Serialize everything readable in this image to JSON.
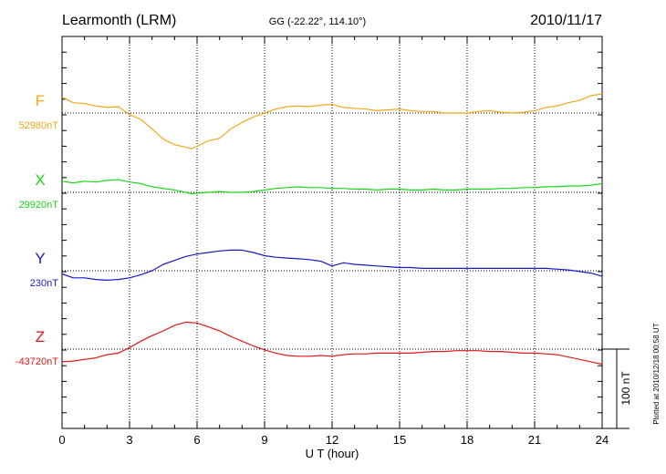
{
  "header": {
    "station": "Learmonth (LRM)",
    "coords": "GG (-22.22°, 114.10°)",
    "date": "2010/11/17"
  },
  "footer": {
    "plotted": "Plotted at 2010/12/18 00:58 UT"
  },
  "colors": {
    "F": "#f0a818",
    "X": "#18d818",
    "Y": "#1818c8",
    "Z": "#e01818"
  },
  "chart_data": {
    "type": "line",
    "xlabel": "U T (hour)",
    "xlim": [
      0,
      24
    ],
    "xticks": [
      "0",
      "3",
      "6",
      "9",
      "12",
      "15",
      "18",
      "21",
      "24"
    ],
    "scale_bar": {
      "label": "100 nT",
      "value_nT": 100
    },
    "series": [
      {
        "name": "F",
        "baseline_label": "52980nT",
        "baseline_nT": 52980,
        "x": [
          0,
          0.5,
          1,
          1.5,
          2,
          2.5,
          3,
          3.5,
          4,
          4.5,
          5,
          5.5,
          5.75,
          6,
          6.5,
          7,
          7.5,
          8,
          8.5,
          9,
          9.5,
          10,
          10.5,
          11,
          11.5,
          12,
          12.5,
          13,
          13.5,
          14,
          14.5,
          15,
          15.5,
          16,
          16.5,
          17,
          17.5,
          18,
          18.5,
          19,
          19.5,
          20,
          20.5,
          21,
          21.5,
          22,
          22.5,
          23,
          23.5,
          24
        ],
        "y": [
          53000,
          52993,
          52992,
          52989,
          52987,
          52988,
          52978,
          52972,
          52960,
          52947,
          52940,
          52937,
          52935,
          52938,
          52945,
          52948,
          52960,
          52968,
          52975,
          52980,
          52985,
          52988,
          52989,
          52988,
          52990,
          52991,
          52987,
          52986,
          52985,
          52983,
          52984,
          52985,
          52983,
          52982,
          52982,
          52980,
          52980,
          52980,
          52982,
          52983,
          52981,
          52980,
          52981,
          52983,
          52987,
          52989,
          52993,
          52996,
          53002,
          53004
        ]
      },
      {
        "name": "X",
        "baseline_label": "29920nT",
        "baseline_nT": 29920,
        "x": [
          0,
          0.5,
          1,
          1.5,
          2,
          2.5,
          3,
          3.5,
          4,
          4.5,
          5,
          5.5,
          5.75,
          6,
          6.5,
          7,
          7.5,
          8,
          8.5,
          9,
          9.5,
          10,
          10.5,
          11,
          11.5,
          12,
          12.5,
          13,
          13.5,
          14,
          14.5,
          15,
          15.5,
          16,
          16.5,
          17,
          17.5,
          18,
          18.5,
          19,
          19.5,
          20,
          20.5,
          21,
          21.5,
          22,
          22.5,
          23,
          23.5,
          24
        ],
        "y": [
          29934,
          29932,
          29934,
          29933,
          29935,
          29936,
          29933,
          29931,
          29927,
          29925,
          29923,
          29920,
          29918,
          29919,
          29920,
          29921,
          29920,
          29920,
          29921,
          29923,
          29925,
          29926,
          29927,
          29926,
          29926,
          29925,
          29925,
          29924,
          29924,
          29923,
          29924,
          29924,
          29923,
          29923,
          29924,
          29923,
          29923,
          29924,
          29924,
          29924,
          29925,
          29925,
          29926,
          29926,
          29927,
          29927,
          29928,
          29928,
          29929,
          29931
        ]
      },
      {
        "name": "Y",
        "baseline_label": "230nT",
        "baseline_nT": 230,
        "x": [
          0,
          0.5,
          1,
          1.5,
          2,
          2.5,
          3,
          3.5,
          4,
          4.5,
          5,
          5.5,
          6,
          6.5,
          7,
          7.5,
          8,
          8.5,
          9,
          9.5,
          10,
          10.5,
          11,
          11.5,
          12,
          12.5,
          13,
          13.5,
          14,
          14.5,
          15,
          15.5,
          16,
          16.5,
          17,
          17.5,
          18,
          18.5,
          19,
          19.5,
          20,
          20.5,
          21,
          21.5,
          22,
          22.5,
          23,
          23.5,
          24
        ],
        "y": [
          226,
          221,
          221,
          219,
          218,
          219,
          221,
          225,
          230,
          238,
          243,
          248,
          251,
          253,
          255,
          256,
          256,
          253,
          249,
          247,
          246,
          245,
          244,
          242,
          236,
          240,
          238,
          237,
          236,
          235,
          234,
          234,
          233,
          233,
          233,
          233,
          233,
          233,
          233,
          233,
          233,
          233,
          233,
          233,
          232,
          231,
          229,
          227,
          223
        ]
      },
      {
        "name": "Z",
        "baseline_label": "-43720nT",
        "baseline_nT": -43720,
        "x": [
          0,
          0.5,
          1,
          1.5,
          2,
          2.5,
          3,
          3.5,
          4,
          4.5,
          5,
          5.5,
          6,
          6.5,
          7,
          7.5,
          8,
          8.5,
          9,
          9.5,
          10,
          10.5,
          11,
          11.5,
          12,
          12.5,
          13,
          13.5,
          14,
          14.5,
          15,
          15.5,
          16,
          16.5,
          17,
          17.5,
          18,
          18.5,
          19,
          19.5,
          20,
          20.5,
          21,
          21.5,
          22,
          22.5,
          23,
          23.5,
          24
        ],
        "y": [
          -43736,
          -43735,
          -43733,
          -43731,
          -43727,
          -43725,
          -43718,
          -43710,
          -43703,
          -43697,
          -43690,
          -43686,
          -43687,
          -43692,
          -43697,
          -43704,
          -43710,
          -43716,
          -43721,
          -43725,
          -43728,
          -43729,
          -43729,
          -43728,
          -43729,
          -43727,
          -43726,
          -43726,
          -43725,
          -43725,
          -43725,
          -43725,
          -43724,
          -43723,
          -43723,
          -43722,
          -43722,
          -43722,
          -43723,
          -43723,
          -43724,
          -43725,
          -43725,
          -43726,
          -43727,
          -43730,
          -43733,
          -43736,
          -43739
        ]
      }
    ]
  }
}
